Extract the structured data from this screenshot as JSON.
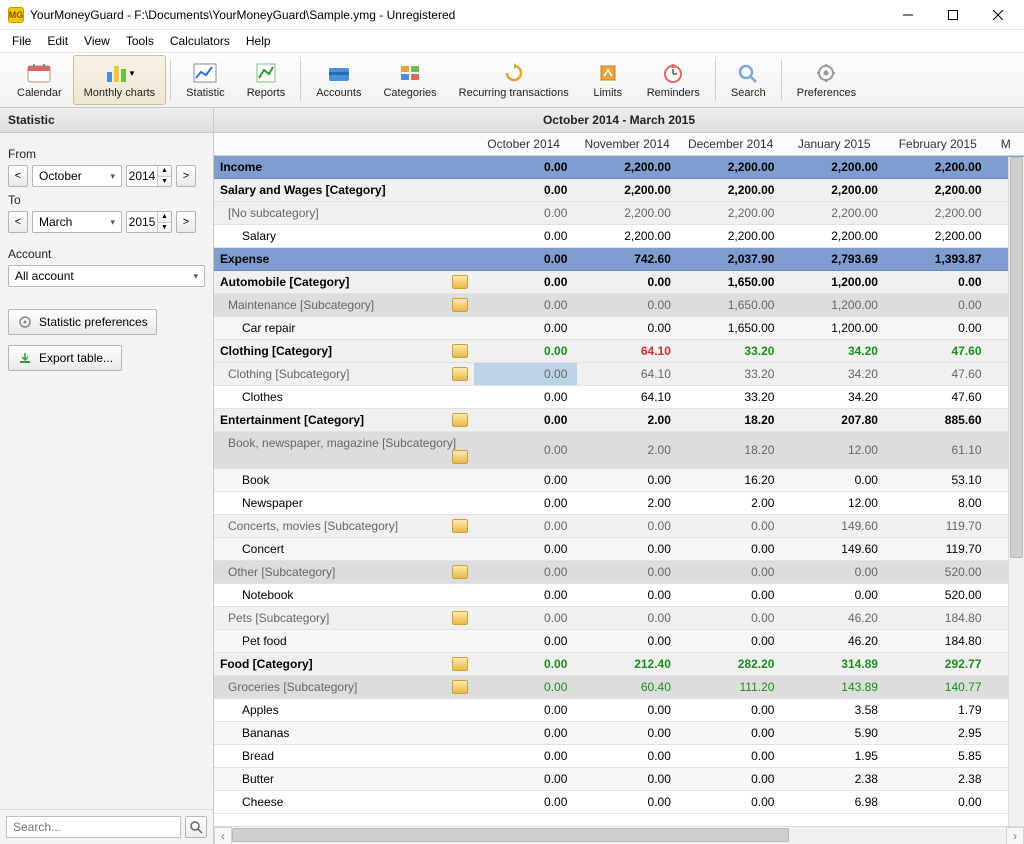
{
  "window": {
    "app_short": "MG",
    "title": "YourMoneyGuard - F:\\Documents\\YourMoneyGuard\\Sample.ymg - Unregistered"
  },
  "menu": [
    "File",
    "Edit",
    "View",
    "Tools",
    "Calculators",
    "Help"
  ],
  "toolbar": [
    {
      "id": "calendar",
      "label": "Calendar"
    },
    {
      "id": "monthly-charts",
      "label": "Monthly charts",
      "active": true,
      "dropdown": true
    },
    {
      "id": "statistic",
      "label": "Statistic"
    },
    {
      "id": "reports",
      "label": "Reports"
    },
    {
      "id": "accounts",
      "label": "Accounts"
    },
    {
      "id": "categories",
      "label": "Categories"
    },
    {
      "id": "recurring",
      "label": "Recurring transactions"
    },
    {
      "id": "limits",
      "label": "Limits"
    },
    {
      "id": "reminders",
      "label": "Reminders"
    },
    {
      "id": "search",
      "label": "Search"
    },
    {
      "id": "preferences",
      "label": "Preferences"
    }
  ],
  "sidebar": {
    "heading": "Statistic",
    "from_label": "From",
    "to_label": "To",
    "from_month": "October",
    "from_year": "2014",
    "to_month": "March",
    "to_year": "2015",
    "account_label": "Account",
    "account_value": "All account",
    "btn_prefs": "Statistic preferences",
    "btn_export": "Export table...",
    "search_placeholder": "Search..."
  },
  "content": {
    "heading": "October 2014 - March 2015",
    "columns": [
      "",
      "October 2014",
      "November 2014",
      "December 2014",
      "January 2015",
      "February 2015",
      "M"
    ],
    "rows": [
      {
        "type": "section",
        "label": "Income",
        "vals": [
          "0.00",
          "2,200.00",
          "2,200.00",
          "2,200.00",
          "2,200.00"
        ]
      },
      {
        "type": "cat",
        "label": "Salary and Wages [Category]",
        "vals": [
          "0.00",
          "2,200.00",
          "2,200.00",
          "2,200.00",
          "2,200.00"
        ]
      },
      {
        "type": "sub",
        "label": "[No subcategory]",
        "vals": [
          "0.00",
          "2,200.00",
          "2,200.00",
          "2,200.00",
          "2,200.00"
        ]
      },
      {
        "type": "leaf",
        "label": "Salary",
        "vals": [
          "0.00",
          "2,200.00",
          "2,200.00",
          "2,200.00",
          "2,200.00"
        ]
      },
      {
        "type": "section",
        "label": "Expense",
        "vals": [
          "0.00",
          "742.60",
          "2,037.90",
          "2,793.69",
          "1,393.87"
        ]
      },
      {
        "type": "cat",
        "icon": true,
        "label": "Automobile [Category]",
        "vals": [
          "0.00",
          "0.00",
          "1,650.00",
          "1,200.00",
          "0.00"
        ]
      },
      {
        "type": "sub",
        "icon": true,
        "label": "Maintenance [Subcategory]",
        "vals": [
          "0.00",
          "0.00",
          "1,650.00",
          "1,200.00",
          "0.00"
        ]
      },
      {
        "type": "leaf",
        "label": "Car repair",
        "vals": [
          "0.00",
          "0.00",
          "1,650.00",
          "1,200.00",
          "0.00"
        ]
      },
      {
        "type": "cat",
        "icon": true,
        "label": "Clothing [Category]",
        "vals": [
          "0.00",
          "64.10",
          "33.20",
          "34.20",
          "47.60"
        ],
        "colors": [
          "green",
          "red",
          "green",
          "green",
          "green"
        ]
      },
      {
        "type": "sub",
        "icon": true,
        "label": "Clothing [Subcategory]",
        "vals": [
          "0.00",
          "64.10",
          "33.20",
          "34.20",
          "47.60"
        ],
        "selcol": 0
      },
      {
        "type": "leaf",
        "label": "Clothes",
        "vals": [
          "0.00",
          "64.10",
          "33.20",
          "34.20",
          "47.60"
        ]
      },
      {
        "type": "cat",
        "icon": true,
        "label": "Entertainment [Category]",
        "vals": [
          "0.00",
          "2.00",
          "18.20",
          "207.80",
          "885.60"
        ]
      },
      {
        "type": "sub",
        "icon": true,
        "label": "Book, newspaper, magazine [Subcategory]",
        "vals": [
          "0.00",
          "2.00",
          "18.20",
          "12.00",
          "61.10"
        ]
      },
      {
        "type": "leaf",
        "label": "Book",
        "vals": [
          "0.00",
          "0.00",
          "16.20",
          "0.00",
          "53.10"
        ]
      },
      {
        "type": "leaf",
        "label": "Newspaper",
        "vals": [
          "0.00",
          "2.00",
          "2.00",
          "12.00",
          "8.00"
        ]
      },
      {
        "type": "sub",
        "icon": true,
        "label": "Concerts, movies [Subcategory]",
        "vals": [
          "0.00",
          "0.00",
          "0.00",
          "149.60",
          "119.70"
        ]
      },
      {
        "type": "leaf",
        "label": "Concert",
        "vals": [
          "0.00",
          "0.00",
          "0.00",
          "149.60",
          "119.70"
        ]
      },
      {
        "type": "sub",
        "icon": true,
        "label": "Other [Subcategory]",
        "vals": [
          "0.00",
          "0.00",
          "0.00",
          "0.00",
          "520.00"
        ]
      },
      {
        "type": "leaf",
        "label": "Notebook",
        "vals": [
          "0.00",
          "0.00",
          "0.00",
          "0.00",
          "520.00"
        ]
      },
      {
        "type": "sub",
        "icon": true,
        "label": "Pets [Subcategory]",
        "vals": [
          "0.00",
          "0.00",
          "0.00",
          "46.20",
          "184.80"
        ]
      },
      {
        "type": "leaf",
        "label": "Pet food",
        "vals": [
          "0.00",
          "0.00",
          "0.00",
          "46.20",
          "184.80"
        ]
      },
      {
        "type": "cat",
        "icon": true,
        "label": "Food [Category]",
        "vals": [
          "0.00",
          "212.40",
          "282.20",
          "314.89",
          "292.77"
        ],
        "colors": [
          "green",
          "green",
          "green",
          "green",
          "green"
        ]
      },
      {
        "type": "sub",
        "icon": true,
        "label": "Groceries [Subcategory]",
        "vals": [
          "0.00",
          "60.40",
          "111.20",
          "143.89",
          "140.77"
        ],
        "colors": [
          "green",
          "green",
          "green",
          "green",
          "green"
        ]
      },
      {
        "type": "leaf",
        "label": "Apples",
        "vals": [
          "0.00",
          "0.00",
          "0.00",
          "3.58",
          "1.79"
        ]
      },
      {
        "type": "leaf",
        "label": "Bananas",
        "vals": [
          "0.00",
          "0.00",
          "0.00",
          "5.90",
          "2.95"
        ]
      },
      {
        "type": "leaf",
        "label": "Bread",
        "vals": [
          "0.00",
          "0.00",
          "0.00",
          "1.95",
          "5.85"
        ]
      },
      {
        "type": "leaf",
        "label": "Butter",
        "vals": [
          "0.00",
          "0.00",
          "0.00",
          "2.38",
          "2.38"
        ]
      },
      {
        "type": "leaf",
        "label": "Cheese",
        "vals": [
          "0.00",
          "0.00",
          "0.00",
          "6.98",
          "0.00"
        ]
      }
    ]
  },
  "colors": {
    "section_bg": "#7f9ecf",
    "green": "#1a8f1a",
    "red": "#d03030",
    "selected_cell": "#bcd3e7"
  }
}
